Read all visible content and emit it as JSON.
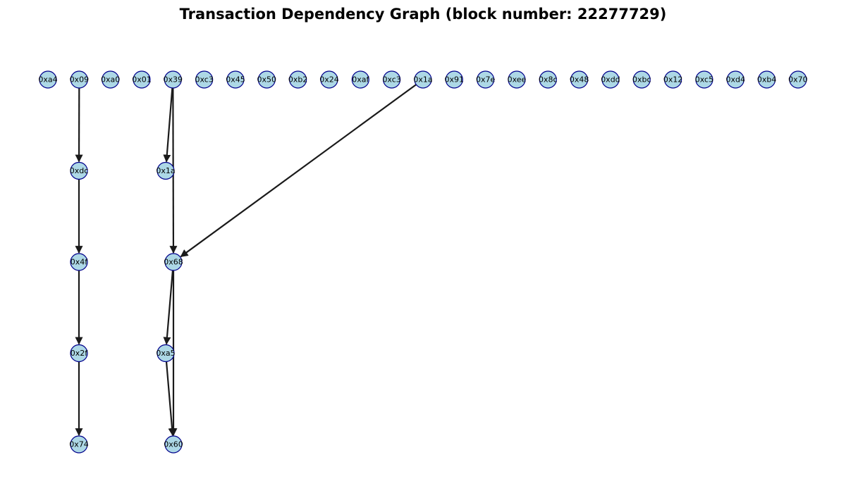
{
  "title": "Transaction Dependency Graph (block number: 22277729)",
  "colors": {
    "node_fill": "#add8e6",
    "node_stroke": "#00008b",
    "edge": "#1a1a1a",
    "label": "#000000"
  },
  "graph": {
    "layers": [
      [
        "0xa4",
        "0x09",
        "0xa0",
        "0x01",
        "0x39",
        "0xc3",
        "0x45",
        "0x50",
        "0xb2",
        "0x24",
        "0xaf",
        "0xc3",
        "0x1a",
        "0x91",
        "0x7e",
        "0xee",
        "0x8c",
        "0x48",
        "0xdd",
        "0xbc",
        "0x12",
        "0xc5",
        "0xd4",
        "0xb4",
        "0x70"
      ],
      [
        "0xdc",
        "0x1a"
      ],
      [
        "0x4f",
        "0x68"
      ],
      [
        "0x2f",
        "0xa5"
      ],
      [
        "0x74",
        "0x60"
      ]
    ],
    "edges": [
      [
        "0x09",
        "0xdc"
      ],
      [
        "0xdc",
        "0x4f"
      ],
      [
        "0x4f",
        "0x2f"
      ],
      [
        "0x2f",
        "0x74"
      ],
      [
        "0x39",
        "0x1a"
      ],
      [
        "0x39",
        "0x68"
      ],
      [
        "0x1a",
        "0x68"
      ],
      [
        "0x68",
        "0xa5"
      ],
      [
        "0x68",
        "0x60"
      ],
      [
        "0xa5",
        "0x60"
      ]
    ]
  }
}
